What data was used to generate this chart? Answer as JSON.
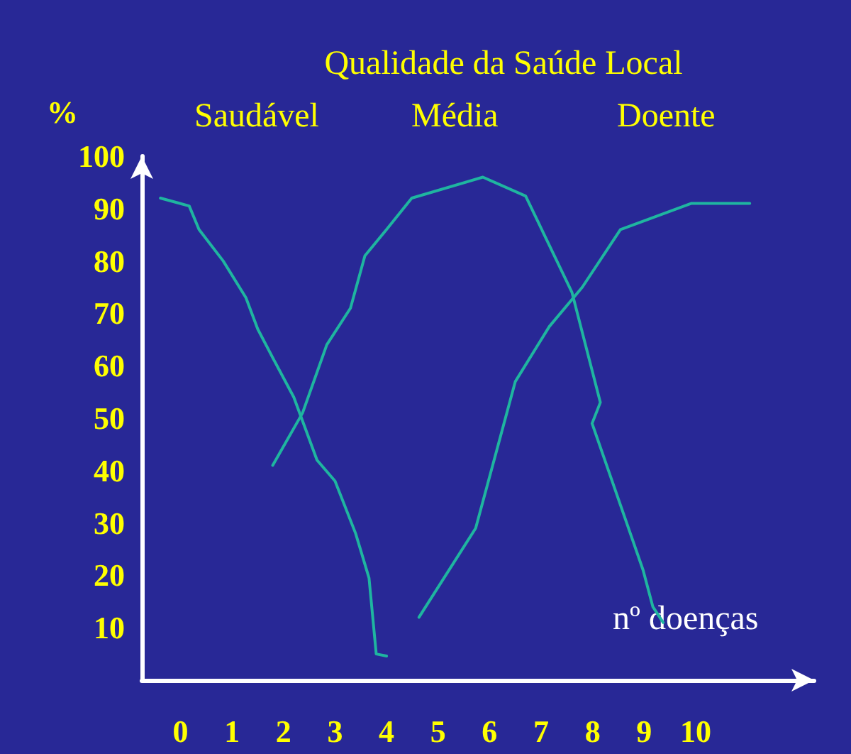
{
  "chart_data": {
    "type": "line",
    "title": "Qualidade da Saúde Local",
    "ylabel": "%",
    "xlabel": "nº doenças",
    "xlim": [
      -0.75,
      12.3
    ],
    "xticks": [
      0,
      1,
      2,
      3,
      4,
      5,
      6,
      7,
      8,
      9,
      10
    ],
    "ylim": [
      0,
      100
    ],
    "yticks": [
      10,
      20,
      30,
      40,
      50,
      60,
      70,
      80,
      90,
      100
    ],
    "grid": false,
    "legend": false,
    "marker": "none",
    "line_style": "solid",
    "series": [
      {
        "name": "Saudável",
        "color": "#1fb5a0",
        "x": [
          -0.39,
          0.17,
          0.36,
          0.83,
          1.27,
          1.5,
          1.82,
          2.2,
          2.65,
          3.0,
          3.4,
          3.66,
          3.8,
          4.0
        ],
        "values": [
          92,
          90.5,
          86,
          80,
          73,
          67,
          61,
          54,
          42,
          38,
          28,
          19.5,
          5,
          4.6
        ]
      },
      {
        "name": "Média",
        "color": "#1fb5a0",
        "x": [
          1.79,
          2.37,
          2.84,
          3.3,
          3.58,
          4.0,
          4.49,
          5.87,
          6.7,
          7.6,
          8.15,
          7.99,
          8.98,
          9.17,
          9.37
        ],
        "values": [
          41,
          51,
          64,
          71,
          81,
          86,
          92,
          96,
          92.4,
          74,
          53,
          49,
          21,
          14,
          11
        ]
      },
      {
        "name": "Doente",
        "color": "#1fb5a0",
        "x": [
          4.63,
          5.73,
          5.95,
          6.5,
          7.16,
          7.8,
          8.54,
          9.92,
          11.05
        ],
        "values": [
          12,
          29,
          37,
          57,
          67.5,
          75,
          86,
          91,
          91
        ]
      }
    ]
  }
}
